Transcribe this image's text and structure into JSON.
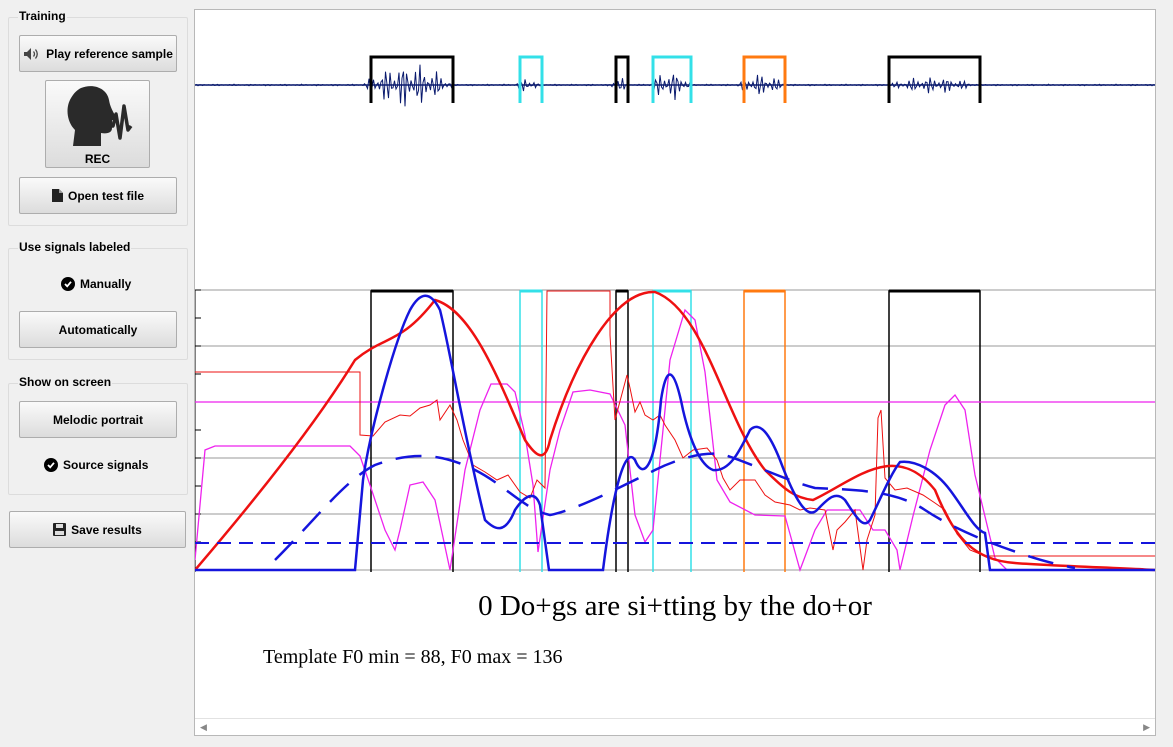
{
  "training": {
    "title": "Training",
    "play_label": "Play reference sample",
    "rec_label": "REC",
    "open_label": "Open test file"
  },
  "signals": {
    "title": "Use signals labeled",
    "manually_label": "Manually",
    "automatically_label": "Automatically"
  },
  "show": {
    "title": "Show on screen",
    "melodic_label": "Melodic portrait",
    "source_label": "Source signals"
  },
  "save_label": "Save results",
  "plot": {
    "phrase": "0 Do+gs are si+tting by the do+or",
    "f0_text": "Template F0 min = 88, F0 max = 136"
  },
  "colors": {
    "waveform": "#0a1a6e",
    "segment_black": "#000000",
    "segment_cyan": "#33e0e8",
    "segment_orange": "#ff7a10",
    "red_curve": "#ee1111",
    "blue_curve": "#1515dd",
    "magenta_curve": "#ee22ee"
  },
  "icons": {
    "play": "speaker-icon",
    "rec": "speaking-head-icon",
    "open": "file-icon",
    "check": "check-icon",
    "save": "floppy-disk-icon"
  }
}
